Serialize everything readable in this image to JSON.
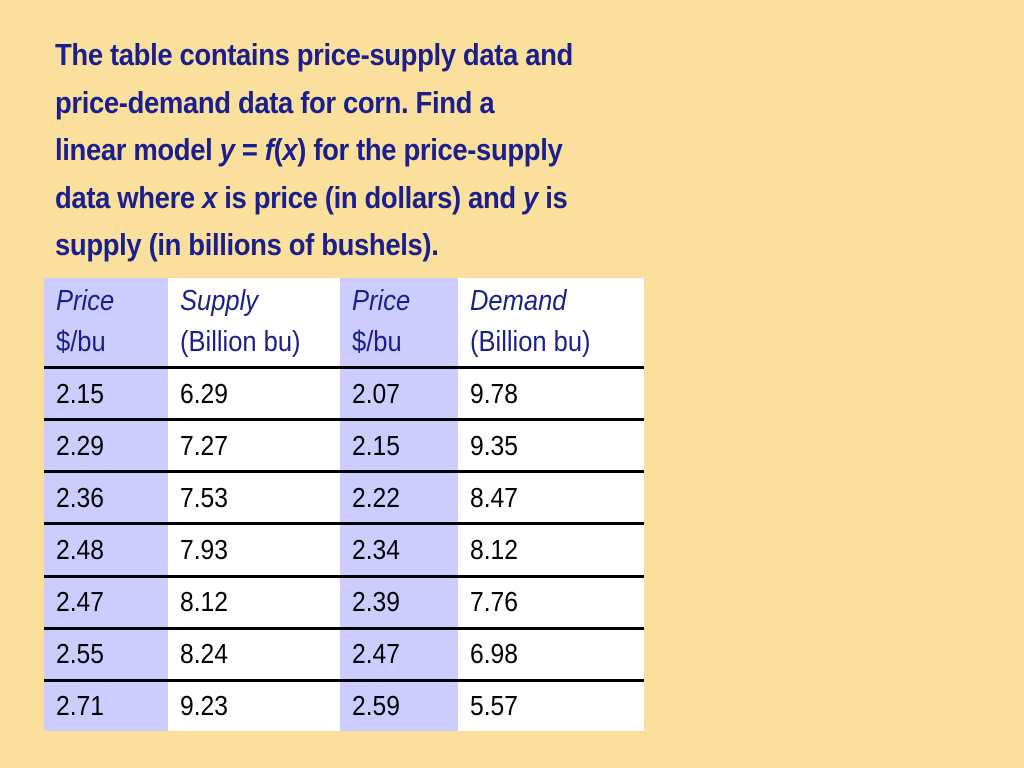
{
  "problem": {
    "line1": "The table contains price-supply data and",
    "line2": "price-demand data for corn.  Find a",
    "line3_a": "linear model ",
    "line3_y": "y",
    "line3_eq": " = ",
    "line3_f": "f",
    "line3_paren_open": "(",
    "line3_x": "x",
    "line3_b": ") for the price-supply",
    "line4_a": "data where ",
    "line4_x": "x",
    "line4_b": " is price (in dollars) and ",
    "line4_y": "y",
    "line4_c": " is",
    "line5": "supply (in billions of bushels)."
  },
  "table": {
    "headers": [
      {
        "name": "Price",
        "unit": "$/bu"
      },
      {
        "name": "Supply",
        "unit": "(Billion bu)"
      },
      {
        "name": "Price",
        "unit": "$/bu"
      },
      {
        "name": "Demand",
        "unit": "(Billion bu)"
      }
    ],
    "rows": [
      [
        "2.15",
        "6.29",
        "2.07",
        "9.78"
      ],
      [
        "2.29",
        "7.27",
        "2.15",
        "9.35"
      ],
      [
        "2.36",
        "7.53",
        "2.22",
        "8.47"
      ],
      [
        "2.48",
        "7.93",
        "2.34",
        "8.12"
      ],
      [
        "2.47",
        "8.12",
        "2.39",
        "7.76"
      ],
      [
        "2.55",
        "8.24",
        "2.47",
        "6.98"
      ],
      [
        "2.71",
        "9.23",
        "2.59",
        "5.57"
      ]
    ]
  },
  "colors": {
    "background": "#fbdf9d",
    "text_heading": "#1a1f8c",
    "shaded_column": "#ccccff",
    "table_background": "#ffffff",
    "row_rule": "#000000"
  }
}
